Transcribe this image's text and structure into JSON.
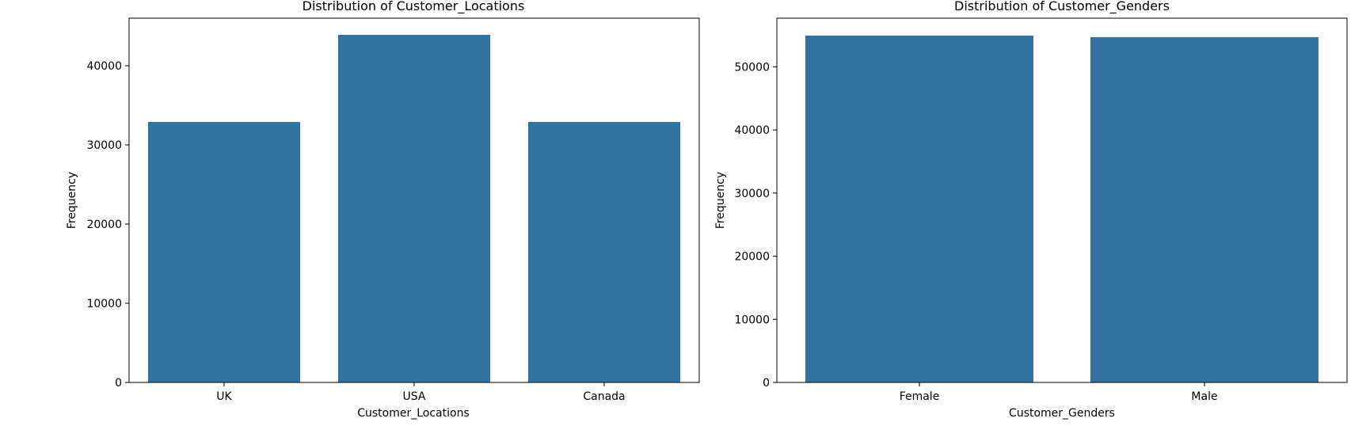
{
  "chart_data": [
    {
      "type": "bar",
      "title": "Distribution of Customer_Locations",
      "xlabel": "Customer_Locations",
      "ylabel": "Frequency",
      "categories": [
        "UK",
        "USA",
        "Canada"
      ],
      "values": [
        32900,
        43900,
        32900
      ],
      "ylim": [
        0,
        46000
      ],
      "yticks": [
        0,
        10000,
        20000,
        30000,
        40000
      ],
      "bar_color": "#3274a1",
      "grid": false,
      "legend": "none"
    },
    {
      "type": "bar",
      "title": "Distribution of Customer_Genders",
      "xlabel": "Customer_Genders",
      "ylabel": "Frequency",
      "categories": [
        "Female",
        "Male"
      ],
      "values": [
        54950,
        54700
      ],
      "ylim": [
        0,
        57700
      ],
      "yticks": [
        0,
        10000,
        20000,
        30000,
        40000,
        50000
      ],
      "bar_color": "#3274a1",
      "grid": false,
      "legend": "none"
    }
  ]
}
